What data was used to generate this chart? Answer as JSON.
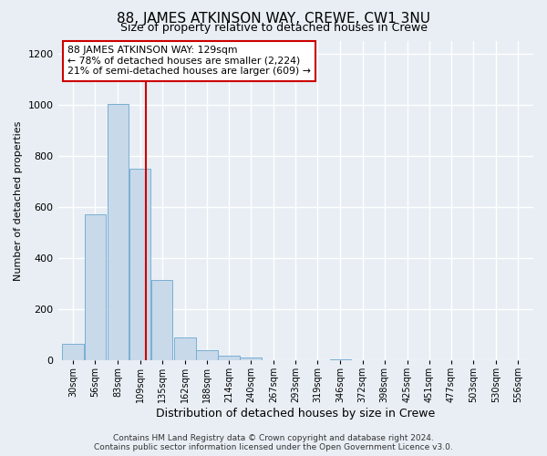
{
  "title_line1": "88, JAMES ATKINSON WAY, CREWE, CW1 3NU",
  "title_line2": "Size of property relative to detached houses in Crewe",
  "xlabel": "Distribution of detached houses by size in Crewe",
  "ylabel": "Number of detached properties",
  "bins": [
    30,
    56,
    83,
    109,
    135,
    162,
    188,
    214,
    240,
    267,
    293,
    319,
    346,
    372,
    398,
    425,
    451,
    477,
    503,
    530,
    556
  ],
  "bar_heights": [
    65,
    570,
    1005,
    750,
    315,
    90,
    40,
    20,
    12,
    0,
    0,
    0,
    5,
    0,
    0,
    0,
    0,
    0,
    0,
    0,
    0
  ],
  "bar_color": "#c8d9ea",
  "bar_edge_color": "#7aafd4",
  "vline_x": 129,
  "vline_color": "#cc0000",
  "annotation_text": "88 JAMES ATKINSON WAY: 129sqm\n← 78% of detached houses are smaller (2,224)\n21% of semi-detached houses are larger (609) →",
  "annotation_box_edge": "#cc0000",
  "annotation_box_face": "#ffffff",
  "ylim": [
    0,
    1250
  ],
  "yticks": [
    0,
    200,
    400,
    600,
    800,
    1000,
    1200
  ],
  "footnote": "Contains HM Land Registry data © Crown copyright and database right 2024.\nContains public sector information licensed under the Open Government Licence v3.0.",
  "background_color": "#e8eef4",
  "plot_background": "#e8eef4",
  "grid_color": "#ffffff",
  "title1_fontsize": 11,
  "title2_fontsize": 9,
  "ylabel_fontsize": 8,
  "xlabel_fontsize": 9,
  "tick_fontsize": 7,
  "footnote_fontsize": 6.5
}
